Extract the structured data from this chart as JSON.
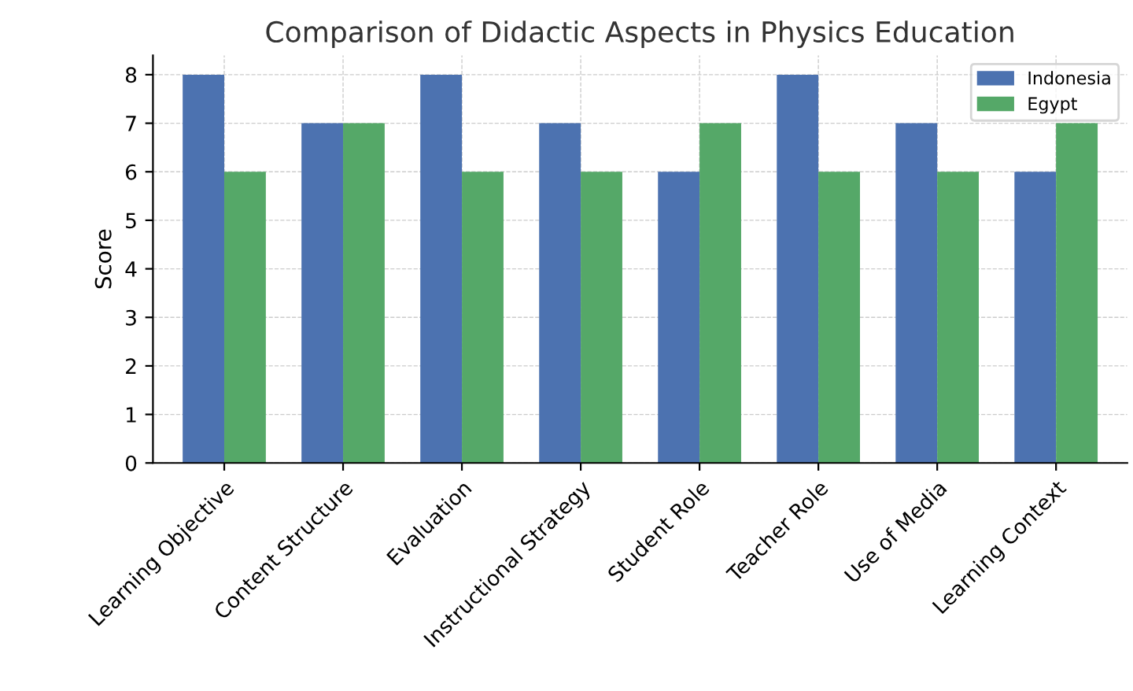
{
  "chart_data": {
    "type": "bar",
    "title": "Comparison of Didactic Aspects in Physics Education",
    "ylabel": "Score",
    "categories": [
      "Learning Objective",
      "Content Structure",
      "Evaluation",
      "Instructional Strategy",
      "Student Role",
      "Teacher Role",
      "Use of Media",
      "Learning Context"
    ],
    "series": [
      {
        "name": "Indonesia",
        "color": "#4c72b0",
        "values": [
          8,
          7,
          8,
          7,
          6,
          8,
          7,
          6
        ]
      },
      {
        "name": "Egypt",
        "color": "#55a868",
        "values": [
          6,
          7,
          6,
          6,
          7,
          6,
          6,
          7
        ]
      }
    ],
    "ylim": [
      0,
      8.4
    ],
    "yticks": [
      0,
      1,
      2,
      3,
      4,
      5,
      6,
      7,
      8
    ],
    "grid": true,
    "legend": "top right",
    "line_style": "dashed"
  }
}
